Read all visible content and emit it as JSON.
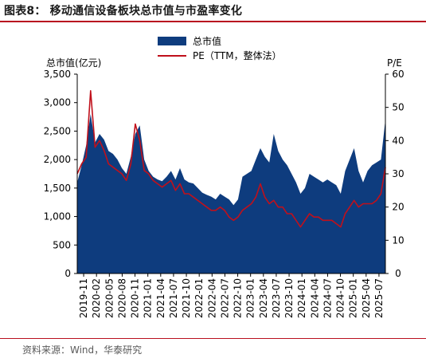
{
  "figure": {
    "title": "图表8：   移动通信设备板块总市值与市盈率变化",
    "source": "资料来源：Wind，华泰研究"
  },
  "chart_data": {
    "type": "area",
    "title": "移动通信设备板块总市值与市盈率变化",
    "ylabel": "总市值(亿元)",
    "y2label": "P/E",
    "ylim": [
      0,
      3500
    ],
    "y2lim": [
      0,
      60
    ],
    "yticks": [
      "0",
      "500",
      "1,000",
      "1,500",
      "2,000",
      "2,500",
      "3,000",
      "3,500"
    ],
    "y2ticks": [
      "0",
      "10",
      "20",
      "30",
      "40",
      "50",
      "60"
    ],
    "xticks": [
      "2019-11",
      "2020-02",
      "2020-05",
      "2020-08",
      "2020-11",
      "2021-01",
      "2021-04",
      "2021-07",
      "2021-10",
      "2022-01",
      "2022-04",
      "2022-07",
      "2022-10",
      "2023-01",
      "2023-04",
      "2023-07",
      "2023-10",
      "2024-01",
      "2024-04",
      "2024-07",
      "2024-10",
      "2025-01",
      "2025-04",
      "2025-07"
    ],
    "legend_position": "top-center",
    "grid": false,
    "colors": {
      "market_cap": "#0e3c7e",
      "pe": "#c0101b",
      "accent": "#b9101f"
    },
    "x": [
      "2019-11",
      "2019-12",
      "2020-01",
      "2020-02",
      "2020-03",
      "2020-04",
      "2020-05",
      "2020-06",
      "2020-07",
      "2020-08",
      "2020-09",
      "2020-10",
      "2020-11",
      "2020-12",
      "2021-01",
      "2021-02",
      "2021-03",
      "2021-04",
      "2021-05",
      "2021-06",
      "2021-07",
      "2021-08",
      "2021-09",
      "2021-10",
      "2021-11",
      "2021-12",
      "2022-01",
      "2022-02",
      "2022-03",
      "2022-04",
      "2022-05",
      "2022-06",
      "2022-07",
      "2022-08",
      "2022-09",
      "2022-10",
      "2022-11",
      "2022-12",
      "2023-01",
      "2023-02",
      "2023-03",
      "2023-04",
      "2023-05",
      "2023-06",
      "2023-07",
      "2023-08",
      "2023-09",
      "2023-10",
      "2023-11",
      "2023-12",
      "2024-01",
      "2024-02",
      "2024-03",
      "2024-04",
      "2024-05",
      "2024-06",
      "2024-07",
      "2024-08",
      "2024-09",
      "2024-10",
      "2024-11",
      "2024-12",
      "2025-01",
      "2025-02",
      "2025-03",
      "2025-04",
      "2025-05",
      "2025-06",
      "2025-07",
      "2025-08"
    ],
    "series": [
      {
        "name": "总市值",
        "axis": "left",
        "style": "area",
        "values": [
          1600,
          1900,
          2250,
          2800,
          2300,
          2450,
          2350,
          2150,
          2100,
          2000,
          1850,
          1750,
          2050,
          2450,
          2600,
          2000,
          1800,
          1700,
          1650,
          1620,
          1700,
          1800,
          1650,
          1850,
          1650,
          1600,
          1580,
          1500,
          1420,
          1380,
          1350,
          1300,
          1400,
          1350,
          1300,
          1200,
          1300,
          1700,
          1750,
          1800,
          2000,
          2200,
          2050,
          1950,
          2450,
          2150,
          2000,
          1900,
          1750,
          1600,
          1400,
          1500,
          1750,
          1700,
          1650,
          1600,
          1650,
          1600,
          1550,
          1400,
          1800,
          2000,
          2200,
          1800,
          1600,
          1800,
          1900,
          1950,
          2000,
          2700
        ]
      },
      {
        "name": "PE（TTM，整体法）",
        "axis": "right",
        "style": "line",
        "values": [
          30,
          33,
          35,
          55,
          38,
          40,
          37,
          33,
          32,
          31,
          30,
          28,
          33,
          45,
          40,
          31,
          30,
          28,
          27,
          26,
          27,
          28,
          25,
          27,
          24,
          24,
          23,
          22,
          21,
          20,
          19,
          19,
          20,
          19,
          17,
          16,
          17,
          19,
          20,
          21,
          23,
          27,
          23,
          21,
          22,
          20,
          20,
          18,
          18,
          16,
          14,
          16,
          18,
          17,
          17,
          16,
          16,
          16,
          15,
          14,
          18,
          20,
          22,
          20,
          21,
          21,
          21,
          22,
          24,
          32
        ]
      }
    ]
  }
}
